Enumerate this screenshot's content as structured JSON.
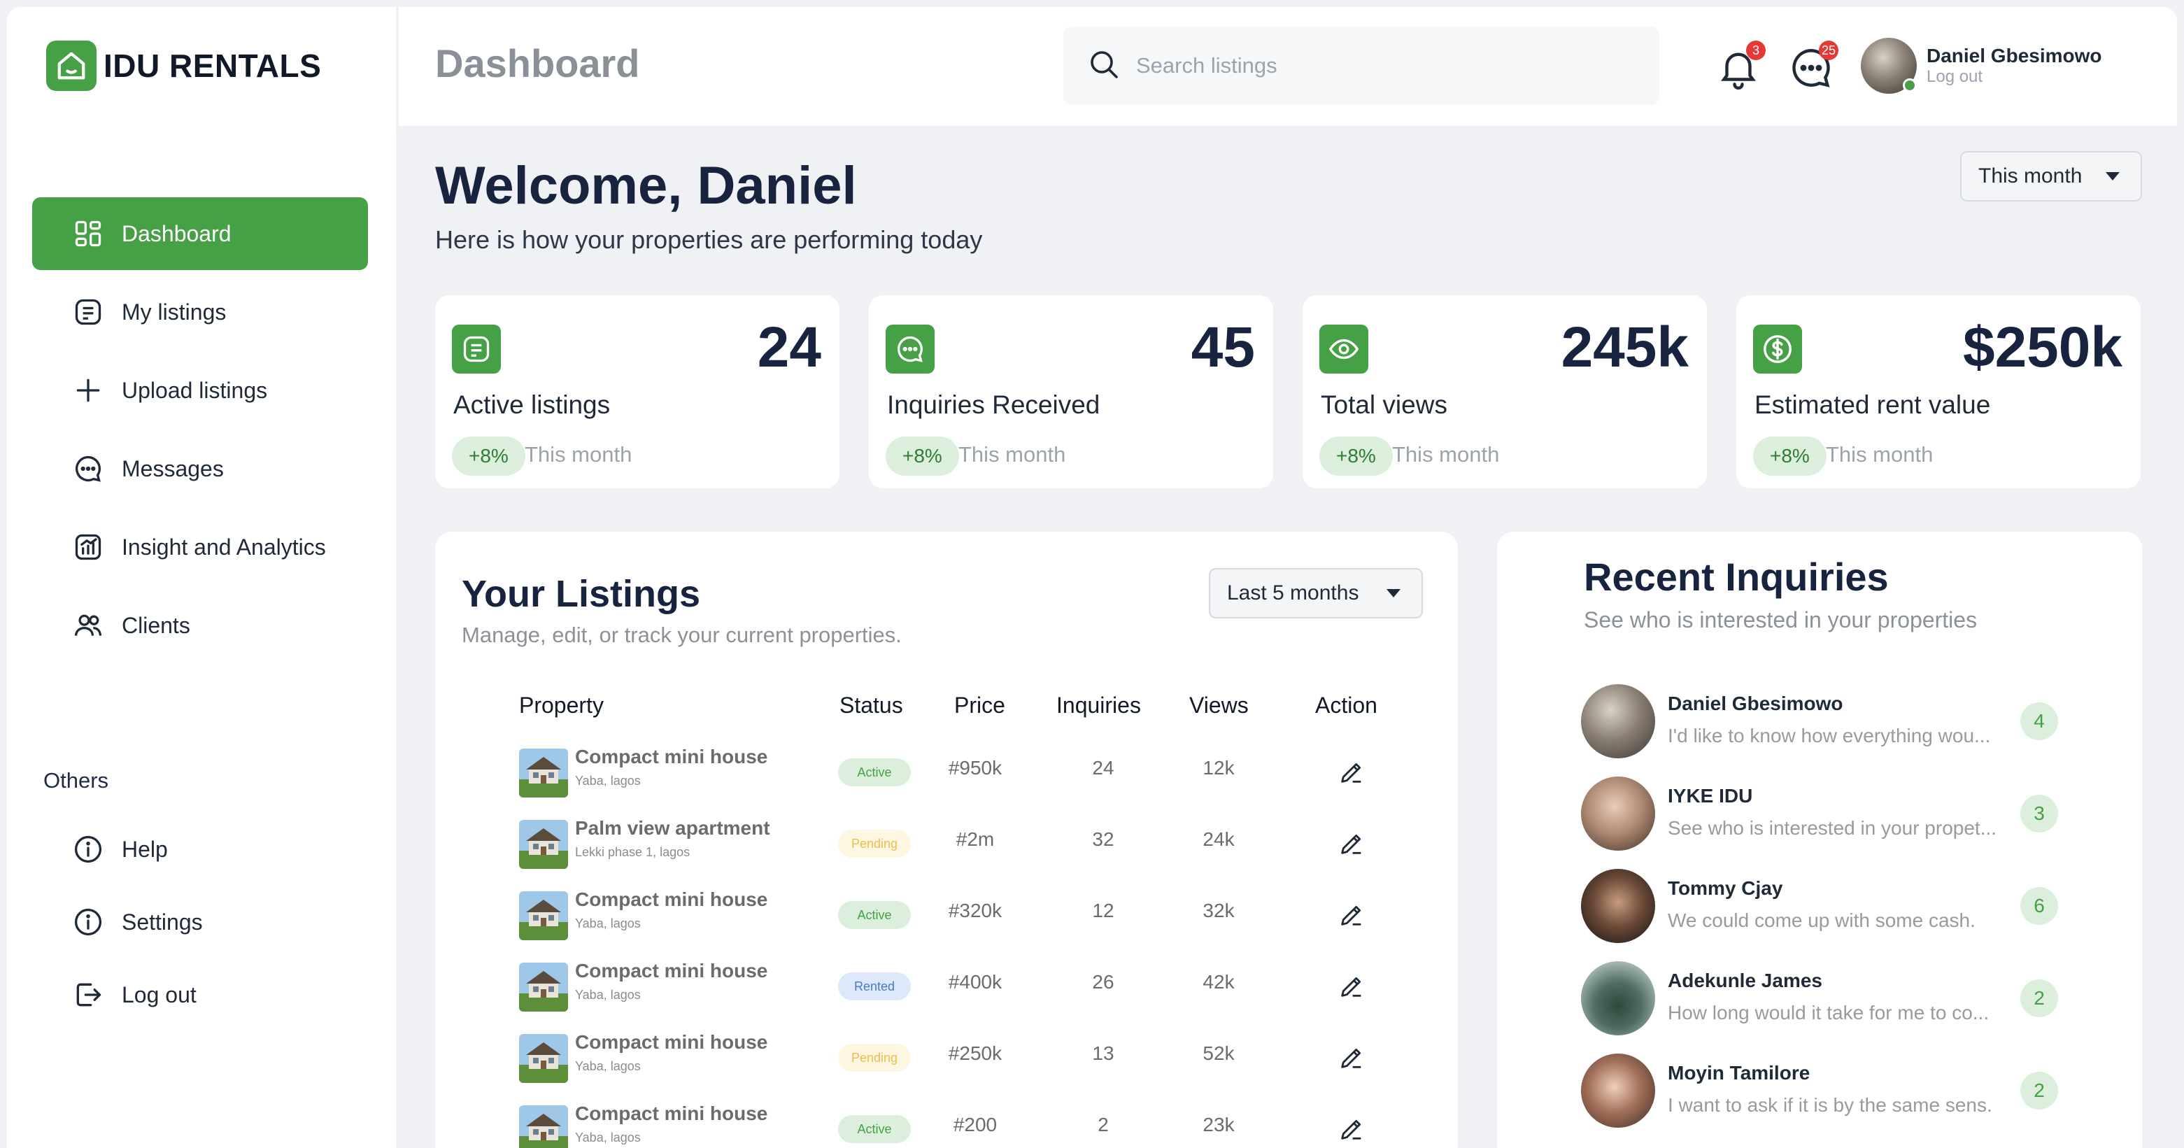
{
  "app": {
    "name": "IDU RENTALS"
  },
  "sidebar": {
    "items": [
      {
        "label": "Dashboard",
        "icon": "grid-icon",
        "active": true
      },
      {
        "label": "My listings",
        "icon": "list-icon"
      },
      {
        "label": "Upload listings",
        "icon": "plus-icon"
      },
      {
        "label": "Messages",
        "icon": "chat-icon"
      },
      {
        "label": "Insight and Analytics",
        "icon": "analytics-icon"
      },
      {
        "label": "Clients",
        "icon": "users-icon"
      }
    ],
    "others_label": "Others",
    "others": [
      {
        "label": "Help",
        "icon": "info-icon"
      },
      {
        "label": "Settings",
        "icon": "info-icon"
      },
      {
        "label": "Log out",
        "icon": "logout-icon"
      }
    ]
  },
  "header": {
    "title": "Dashboard",
    "search_placeholder": "Search listings",
    "notifications_count": "3",
    "messages_count": "25",
    "user_name": "Daniel Gbesimowo",
    "user_logout": "Log out"
  },
  "welcome": {
    "title": "Welcome, Daniel",
    "subtitle": "Here is how your properties are performing today",
    "period": "This month"
  },
  "stats": [
    {
      "value": "24",
      "label": "Active listings",
      "change": "+8%",
      "period": "This month",
      "icon": "list-icon"
    },
    {
      "value": "45",
      "label": "Inquiries Received",
      "change": "+8%",
      "period": "This month",
      "icon": "chat-icon"
    },
    {
      "value": "245k",
      "label": "Total views",
      "change": "+8%",
      "period": "This month",
      "icon": "eye-icon"
    },
    {
      "value": "$250k",
      "label": "Estimated rent value",
      "change": "+8%",
      "period": "This month",
      "icon": "dollar-icon"
    }
  ],
  "listings": {
    "title": "Your Listings",
    "subtitle": "Manage, edit, or track your current properties.",
    "range": "Last 5 months",
    "columns": [
      "Property",
      "Status",
      "Price",
      "Inquiries",
      "Views",
      "Action"
    ],
    "rows": [
      {
        "name": "Compact mini house",
        "location": "Yaba, lagos",
        "status": "Active",
        "price": "#950k",
        "inquiries": "24",
        "views": "12k"
      },
      {
        "name": "Palm view apartment",
        "location": "Lekki phase 1, lagos",
        "status": "Pending",
        "price": "#2m",
        "inquiries": "32",
        "views": "24k"
      },
      {
        "name": "Compact mini house",
        "location": "Yaba, lagos",
        "status": "Active",
        "price": "#320k",
        "inquiries": "12",
        "views": "32k"
      },
      {
        "name": "Compact mini house",
        "location": "Yaba, lagos",
        "status": "Rented",
        "price": "#400k",
        "inquiries": "26",
        "views": "42k"
      },
      {
        "name": "Compact mini house",
        "location": "Yaba, lagos",
        "status": "Pending",
        "price": "#250k",
        "inquiries": "13",
        "views": "52k"
      },
      {
        "name": "Compact mini house",
        "location": "Yaba, lagos",
        "status": "Active",
        "price": "#200",
        "inquiries": "2",
        "views": "23k"
      }
    ]
  },
  "inquiries": {
    "title": "Recent Inquiries",
    "subtitle": "See who is interested in your properties",
    "items": [
      {
        "name": "Daniel Gbesimowo",
        "message": "I'd like to know how everything wou...",
        "count": "4"
      },
      {
        "name": "IYKE IDU",
        "message": "See who is interested in your propet...",
        "count": "3"
      },
      {
        "name": "Tommy Cjay",
        "message": "We could come up with some cash.",
        "count": "6"
      },
      {
        "name": "Adekunle James",
        "message": "How long would it take for me to co...",
        "count": "2"
      },
      {
        "name": "Moyin Tamilore",
        "message": "I want to ask if it is by the same sens.",
        "count": "2"
      }
    ]
  },
  "colors": {
    "accent": "#46a046",
    "navy": "#18243f",
    "background": "#f0f1f4"
  }
}
